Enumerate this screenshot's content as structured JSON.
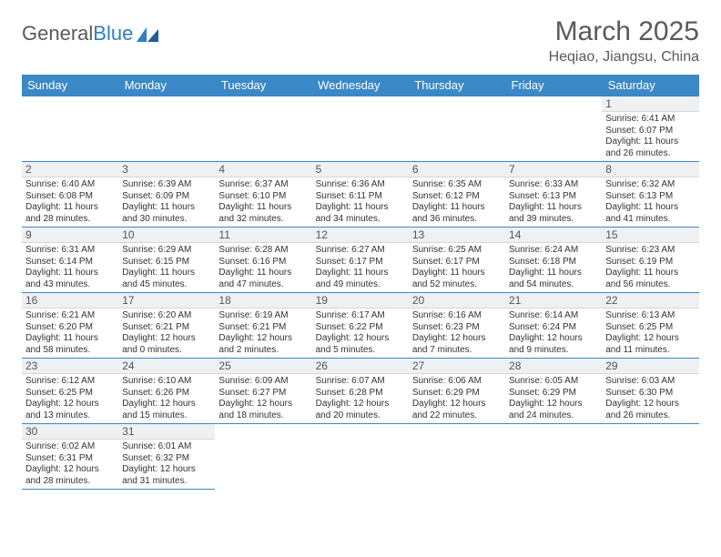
{
  "brand": {
    "part1": "General",
    "part2": "Blue"
  },
  "title": "March 2025",
  "location": "Heqiao, Jiangsu, China",
  "colors": {
    "header_bg": "#3b88c6",
    "header_text": "#ffffff",
    "daynum_bg": "#eef0f1",
    "border": "#3b88c6",
    "brand_gray": "#5a5a5a",
    "brand_blue": "#2f7fc2"
  },
  "weekdays": [
    "Sunday",
    "Monday",
    "Tuesday",
    "Wednesday",
    "Thursday",
    "Friday",
    "Saturday"
  ],
  "weeks": [
    [
      {
        "day": "",
        "sunrise": "",
        "sunset": "",
        "daylight": ""
      },
      {
        "day": "",
        "sunrise": "",
        "sunset": "",
        "daylight": ""
      },
      {
        "day": "",
        "sunrise": "",
        "sunset": "",
        "daylight": ""
      },
      {
        "day": "",
        "sunrise": "",
        "sunset": "",
        "daylight": ""
      },
      {
        "day": "",
        "sunrise": "",
        "sunset": "",
        "daylight": ""
      },
      {
        "day": "",
        "sunrise": "",
        "sunset": "",
        "daylight": ""
      },
      {
        "day": "1",
        "sunrise": "Sunrise: 6:41 AM",
        "sunset": "Sunset: 6:07 PM",
        "daylight": "Daylight: 11 hours and 26 minutes."
      }
    ],
    [
      {
        "day": "2",
        "sunrise": "Sunrise: 6:40 AM",
        "sunset": "Sunset: 6:08 PM",
        "daylight": "Daylight: 11 hours and 28 minutes."
      },
      {
        "day": "3",
        "sunrise": "Sunrise: 6:39 AM",
        "sunset": "Sunset: 6:09 PM",
        "daylight": "Daylight: 11 hours and 30 minutes."
      },
      {
        "day": "4",
        "sunrise": "Sunrise: 6:37 AM",
        "sunset": "Sunset: 6:10 PM",
        "daylight": "Daylight: 11 hours and 32 minutes."
      },
      {
        "day": "5",
        "sunrise": "Sunrise: 6:36 AM",
        "sunset": "Sunset: 6:11 PM",
        "daylight": "Daylight: 11 hours and 34 minutes."
      },
      {
        "day": "6",
        "sunrise": "Sunrise: 6:35 AM",
        "sunset": "Sunset: 6:12 PM",
        "daylight": "Daylight: 11 hours and 36 minutes."
      },
      {
        "day": "7",
        "sunrise": "Sunrise: 6:33 AM",
        "sunset": "Sunset: 6:13 PM",
        "daylight": "Daylight: 11 hours and 39 minutes."
      },
      {
        "day": "8",
        "sunrise": "Sunrise: 6:32 AM",
        "sunset": "Sunset: 6:13 PM",
        "daylight": "Daylight: 11 hours and 41 minutes."
      }
    ],
    [
      {
        "day": "9",
        "sunrise": "Sunrise: 6:31 AM",
        "sunset": "Sunset: 6:14 PM",
        "daylight": "Daylight: 11 hours and 43 minutes."
      },
      {
        "day": "10",
        "sunrise": "Sunrise: 6:29 AM",
        "sunset": "Sunset: 6:15 PM",
        "daylight": "Daylight: 11 hours and 45 minutes."
      },
      {
        "day": "11",
        "sunrise": "Sunrise: 6:28 AM",
        "sunset": "Sunset: 6:16 PM",
        "daylight": "Daylight: 11 hours and 47 minutes."
      },
      {
        "day": "12",
        "sunrise": "Sunrise: 6:27 AM",
        "sunset": "Sunset: 6:17 PM",
        "daylight": "Daylight: 11 hours and 49 minutes."
      },
      {
        "day": "13",
        "sunrise": "Sunrise: 6:25 AM",
        "sunset": "Sunset: 6:17 PM",
        "daylight": "Daylight: 11 hours and 52 minutes."
      },
      {
        "day": "14",
        "sunrise": "Sunrise: 6:24 AM",
        "sunset": "Sunset: 6:18 PM",
        "daylight": "Daylight: 11 hours and 54 minutes."
      },
      {
        "day": "15",
        "sunrise": "Sunrise: 6:23 AM",
        "sunset": "Sunset: 6:19 PM",
        "daylight": "Daylight: 11 hours and 56 minutes."
      }
    ],
    [
      {
        "day": "16",
        "sunrise": "Sunrise: 6:21 AM",
        "sunset": "Sunset: 6:20 PM",
        "daylight": "Daylight: 11 hours and 58 minutes."
      },
      {
        "day": "17",
        "sunrise": "Sunrise: 6:20 AM",
        "sunset": "Sunset: 6:21 PM",
        "daylight": "Daylight: 12 hours and 0 minutes."
      },
      {
        "day": "18",
        "sunrise": "Sunrise: 6:19 AM",
        "sunset": "Sunset: 6:21 PM",
        "daylight": "Daylight: 12 hours and 2 minutes."
      },
      {
        "day": "19",
        "sunrise": "Sunrise: 6:17 AM",
        "sunset": "Sunset: 6:22 PM",
        "daylight": "Daylight: 12 hours and 5 minutes."
      },
      {
        "day": "20",
        "sunrise": "Sunrise: 6:16 AM",
        "sunset": "Sunset: 6:23 PM",
        "daylight": "Daylight: 12 hours and 7 minutes."
      },
      {
        "day": "21",
        "sunrise": "Sunrise: 6:14 AM",
        "sunset": "Sunset: 6:24 PM",
        "daylight": "Daylight: 12 hours and 9 minutes."
      },
      {
        "day": "22",
        "sunrise": "Sunrise: 6:13 AM",
        "sunset": "Sunset: 6:25 PM",
        "daylight": "Daylight: 12 hours and 11 minutes."
      }
    ],
    [
      {
        "day": "23",
        "sunrise": "Sunrise: 6:12 AM",
        "sunset": "Sunset: 6:25 PM",
        "daylight": "Daylight: 12 hours and 13 minutes."
      },
      {
        "day": "24",
        "sunrise": "Sunrise: 6:10 AM",
        "sunset": "Sunset: 6:26 PM",
        "daylight": "Daylight: 12 hours and 15 minutes."
      },
      {
        "day": "25",
        "sunrise": "Sunrise: 6:09 AM",
        "sunset": "Sunset: 6:27 PM",
        "daylight": "Daylight: 12 hours and 18 minutes."
      },
      {
        "day": "26",
        "sunrise": "Sunrise: 6:07 AM",
        "sunset": "Sunset: 6:28 PM",
        "daylight": "Daylight: 12 hours and 20 minutes."
      },
      {
        "day": "27",
        "sunrise": "Sunrise: 6:06 AM",
        "sunset": "Sunset: 6:29 PM",
        "daylight": "Daylight: 12 hours and 22 minutes."
      },
      {
        "day": "28",
        "sunrise": "Sunrise: 6:05 AM",
        "sunset": "Sunset: 6:29 PM",
        "daylight": "Daylight: 12 hours and 24 minutes."
      },
      {
        "day": "29",
        "sunrise": "Sunrise: 6:03 AM",
        "sunset": "Sunset: 6:30 PM",
        "daylight": "Daylight: 12 hours and 26 minutes."
      }
    ],
    [
      {
        "day": "30",
        "sunrise": "Sunrise: 6:02 AM",
        "sunset": "Sunset: 6:31 PM",
        "daylight": "Daylight: 12 hours and 28 minutes."
      },
      {
        "day": "31",
        "sunrise": "Sunrise: 6:01 AM",
        "sunset": "Sunset: 6:32 PM",
        "daylight": "Daylight: 12 hours and 31 minutes."
      },
      {
        "day": "",
        "sunrise": "",
        "sunset": "",
        "daylight": ""
      },
      {
        "day": "",
        "sunrise": "",
        "sunset": "",
        "daylight": ""
      },
      {
        "day": "",
        "sunrise": "",
        "sunset": "",
        "daylight": ""
      },
      {
        "day": "",
        "sunrise": "",
        "sunset": "",
        "daylight": ""
      },
      {
        "day": "",
        "sunrise": "",
        "sunset": "",
        "daylight": ""
      }
    ]
  ]
}
